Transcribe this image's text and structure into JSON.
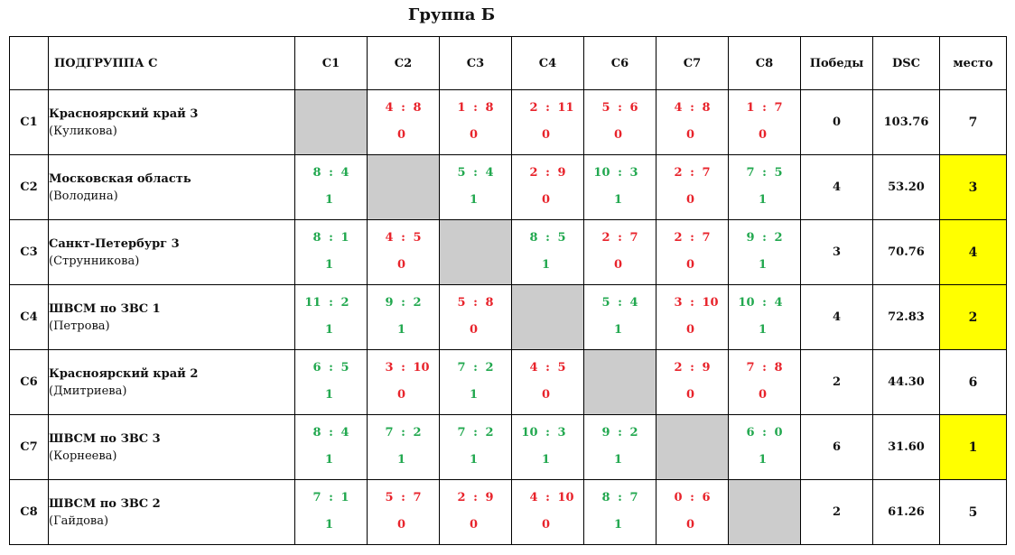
{
  "title": "Группа Б",
  "header": {
    "subgroup": "ПОДГРУППА С",
    "columns": [
      "C1",
      "C2",
      "C3",
      "C4",
      "C6",
      "C7",
      "C8"
    ],
    "wins": "Победы",
    "dsc": "DSC",
    "place": "место"
  },
  "colors": {
    "win": "#22a84f",
    "loss": "#e8232b",
    "blank": "#cccccc",
    "highlight": "#ffff00"
  },
  "rows": [
    {
      "code": "C1",
      "team": "Красноярский край 3",
      "coach": "(Куликова)",
      "cells": [
        null,
        {
          "a": "4",
          "b": "8",
          "p": "0"
        },
        {
          "a": "1",
          "b": "8",
          "p": "0"
        },
        {
          "a": "2",
          "b": "11",
          "p": "0"
        },
        {
          "a": "5",
          "b": "6",
          "p": "0"
        },
        {
          "a": "4",
          "b": "8",
          "p": "0"
        },
        {
          "a": "1",
          "b": "7",
          "p": "0"
        }
      ],
      "wins": "0",
      "dsc": "103.76",
      "place": "7",
      "highlight": false
    },
    {
      "code": "C2",
      "team": "Московская область",
      "coach": "(Володина)",
      "cells": [
        {
          "a": "8",
          "b": "4",
          "p": "1"
        },
        null,
        {
          "a": "5",
          "b": "4",
          "p": "1"
        },
        {
          "a": "2",
          "b": "9",
          "p": "0"
        },
        {
          "a": "10",
          "b": "3",
          "p": "1"
        },
        {
          "a": "2",
          "b": "7",
          "p": "0"
        },
        {
          "a": "7",
          "b": "5",
          "p": "1"
        }
      ],
      "wins": "4",
      "dsc": "53.20",
      "place": "3",
      "highlight": true
    },
    {
      "code": "C3",
      "team": "Санкт-Петербург 3",
      "coach": "(Струнникова)",
      "cells": [
        {
          "a": "8",
          "b": "1",
          "p": "1"
        },
        {
          "a": "4",
          "b": "5",
          "p": "0"
        },
        null,
        {
          "a": "8",
          "b": "5",
          "p": "1"
        },
        {
          "a": "2",
          "b": "7",
          "p": "0"
        },
        {
          "a": "2",
          "b": "7",
          "p": "0"
        },
        {
          "a": "9",
          "b": "2",
          "p": "1"
        }
      ],
      "wins": "3",
      "dsc": "70.76",
      "place": "4",
      "highlight": true
    },
    {
      "code": "C4",
      "team": "ШВСМ по ЗВС 1",
      "coach": "(Петрова)",
      "cells": [
        {
          "a": "11",
          "b": "2",
          "p": "1"
        },
        {
          "a": "9",
          "b": "2",
          "p": "1"
        },
        {
          "a": "5",
          "b": "8",
          "p": "0"
        },
        null,
        {
          "a": "5",
          "b": "4",
          "p": "1"
        },
        {
          "a": "3",
          "b": "10",
          "p": "0"
        },
        {
          "a": "10",
          "b": "4",
          "p": "1"
        }
      ],
      "wins": "4",
      "dsc": "72.83",
      "place": "2",
      "highlight": true
    },
    {
      "code": "C6",
      "team": "Красноярский край 2",
      "coach": "(Дмитриева)",
      "cells": [
        {
          "a": "6",
          "b": "5",
          "p": "1"
        },
        {
          "a": "3",
          "b": "10",
          "p": "0"
        },
        {
          "a": "7",
          "b": "2",
          "p": "1"
        },
        {
          "a": "4",
          "b": "5",
          "p": "0"
        },
        null,
        {
          "a": "2",
          "b": "9",
          "p": "0"
        },
        {
          "a": "7",
          "b": "8",
          "p": "0"
        }
      ],
      "wins": "2",
      "dsc": "44.30",
      "place": "6",
      "highlight": false
    },
    {
      "code": "C7",
      "team": "ШВСМ по ЗВС 3",
      "coach": "(Корнеева)",
      "cells": [
        {
          "a": "8",
          "b": "4",
          "p": "1"
        },
        {
          "a": "7",
          "b": "2",
          "p": "1"
        },
        {
          "a": "7",
          "b": "2",
          "p": "1"
        },
        {
          "a": "10",
          "b": "3",
          "p": "1"
        },
        {
          "a": "9",
          "b": "2",
          "p": "1"
        },
        null,
        {
          "a": "6",
          "b": "0",
          "p": "1"
        }
      ],
      "wins": "6",
      "dsc": "31.60",
      "place": "1",
      "highlight": true
    },
    {
      "code": "C8",
      "team": "ШВСМ по ЗВС 2",
      "coach": "(Гайдова)",
      "cells": [
        {
          "a": "7",
          "b": "1",
          "p": "1"
        },
        {
          "a": "5",
          "b": "7",
          "p": "0"
        },
        {
          "a": "2",
          "b": "9",
          "p": "0"
        },
        {
          "a": "4",
          "b": "10",
          "p": "0"
        },
        {
          "a": "8",
          "b": "7",
          "p": "1"
        },
        {
          "a": "0",
          "b": "6",
          "p": "0"
        },
        null
      ],
      "wins": "2",
      "dsc": "61.26",
      "place": "5",
      "highlight": false
    }
  ]
}
